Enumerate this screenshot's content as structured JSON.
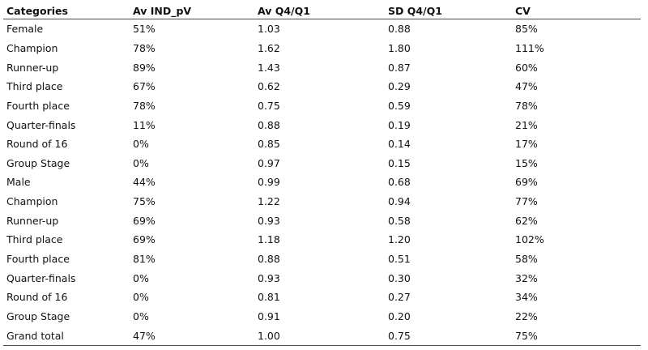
{
  "table": {
    "headers": [
      "Categories",
      "Av IND_pV",
      "Av Q4/Q1",
      "SD Q4/Q1",
      "CV"
    ],
    "rows": [
      [
        "Female",
        "51%",
        "1.03",
        "0.88",
        "85%"
      ],
      [
        "Champion",
        "78%",
        "1.62",
        "1.80",
        "111%"
      ],
      [
        "Runner-up",
        "89%",
        "1.43",
        "0.87",
        "60%"
      ],
      [
        "Third place",
        "67%",
        "0.62",
        "0.29",
        "47%"
      ],
      [
        "Fourth place",
        "78%",
        "0.75",
        "0.59",
        "78%"
      ],
      [
        "Quarter-finals",
        "11%",
        "0.88",
        "0.19",
        "21%"
      ],
      [
        "Round of 16",
        "0%",
        "0.85",
        "0.14",
        "17%"
      ],
      [
        "Group Stage",
        "0%",
        "0.97",
        "0.15",
        "15%"
      ],
      [
        "Male",
        "44%",
        "0.99",
        "0.68",
        "69%"
      ],
      [
        "Champion",
        "75%",
        "1.22",
        "0.94",
        "77%"
      ],
      [
        "Runner-up",
        "69%",
        "0.93",
        "0.58",
        "62%"
      ],
      [
        "Third place",
        "69%",
        "1.18",
        "1.20",
        "102%"
      ],
      [
        "Fourth place",
        "81%",
        "0.88",
        "0.51",
        "58%"
      ],
      [
        "Quarter-finals",
        "0%",
        "0.93",
        "0.30",
        "32%"
      ],
      [
        "Round of 16",
        "0%",
        "0.81",
        "0.27",
        "34%"
      ],
      [
        "Group Stage",
        "0%",
        "0.91",
        "0.20",
        "22%"
      ],
      [
        "Grand total",
        "47%",
        "1.00",
        "0.75",
        "75%"
      ]
    ]
  }
}
